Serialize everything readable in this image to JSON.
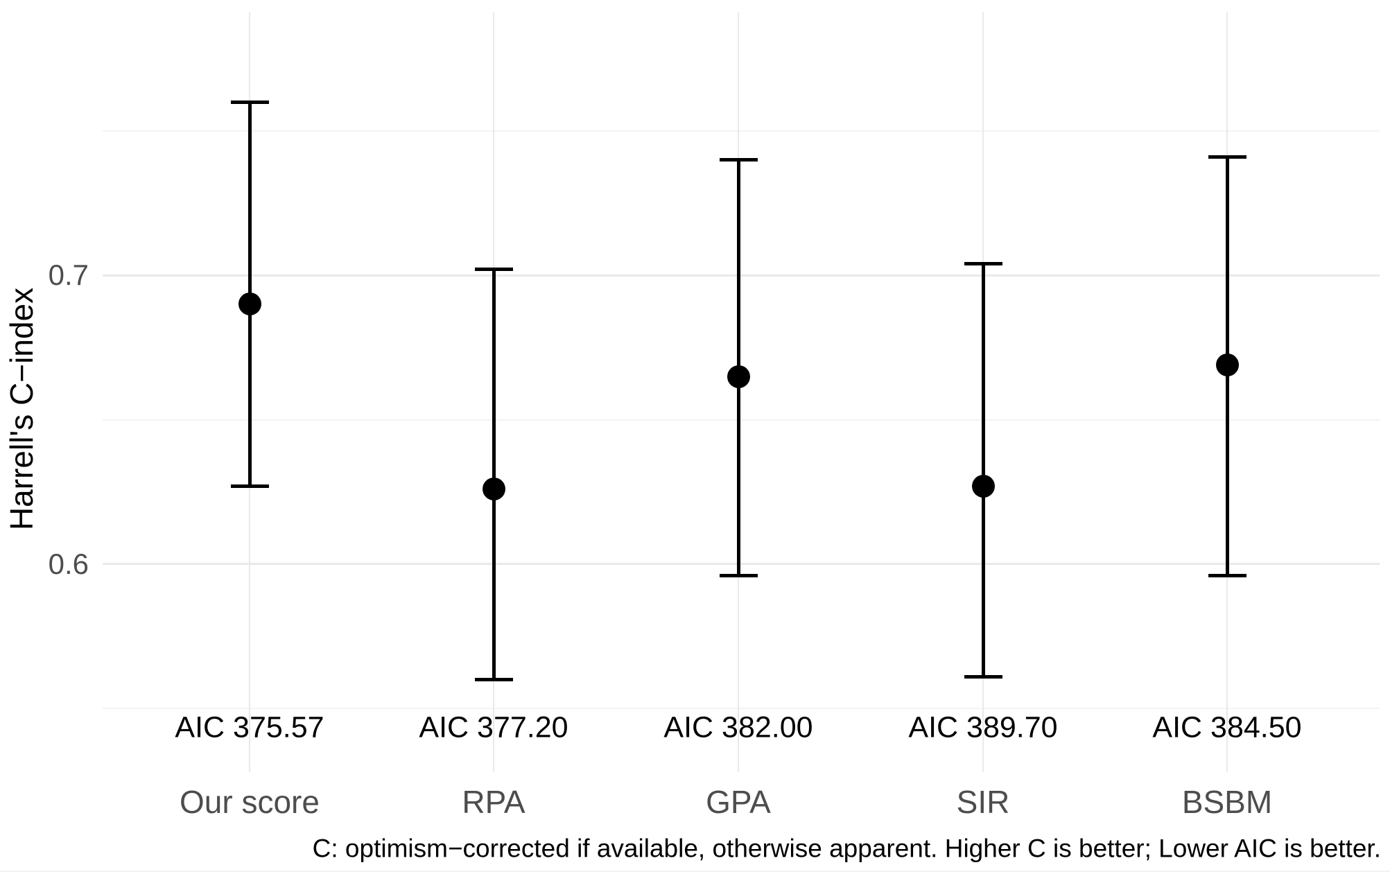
{
  "figure": {
    "background": "#ffffff"
  },
  "chart_data": {
    "type": "pointrange",
    "title": "",
    "xlabel": "",
    "ylabel": "Harrell's C−index",
    "categories": [
      "Our score",
      "RPA",
      "GPA",
      "SIR",
      "BSBM"
    ],
    "series": [
      {
        "name": "Our score",
        "aic_label": "AIC 375.57",
        "aic": 375.57,
        "c": 0.69,
        "ci_low": 0.627,
        "ci_high": 0.76
      },
      {
        "name": "RPA",
        "aic_label": "AIC 377.20",
        "aic": 377.2,
        "c": 0.626,
        "ci_low": 0.56,
        "ci_high": 0.702
      },
      {
        "name": "GPA",
        "aic_label": "AIC 382.00",
        "aic": 382.0,
        "c": 0.665,
        "ci_low": 0.596,
        "ci_high": 0.74
      },
      {
        "name": "SIR",
        "aic_label": "AIC 389.70",
        "aic": 389.7,
        "c": 0.627,
        "ci_low": 0.561,
        "ci_high": 0.704
      },
      {
        "name": "BSBM",
        "aic_label": "AIC 384.50",
        "aic": 384.5,
        "c": 0.669,
        "ci_low": 0.596,
        "ci_high": 0.741
      }
    ],
    "yticks_major": [
      {
        "label": "0.7",
        "value": 0.7
      },
      {
        "label": "0.6",
        "value": 0.6
      }
    ],
    "yticks_minor": [
      0.75,
      0.65,
      0.55
    ],
    "ylim": [
      0.528,
      0.791
    ],
    "grid": "horizontal major+minor, vertical major per category",
    "legend": "none",
    "caption": "C: optimism−corrected if available, otherwise apparent. Higher C is better; Lower AIC is better.",
    "colors": {
      "point": "#000000",
      "errorbar": "#000000",
      "grid_major": "#e9e9e9",
      "grid_minor": "#f3f3f3",
      "tick_text": "#4d4d4d",
      "category_text": "#4d4d4d",
      "aic_text": "#000000",
      "caption_text": "#000000",
      "background": "#ffffff"
    }
  }
}
